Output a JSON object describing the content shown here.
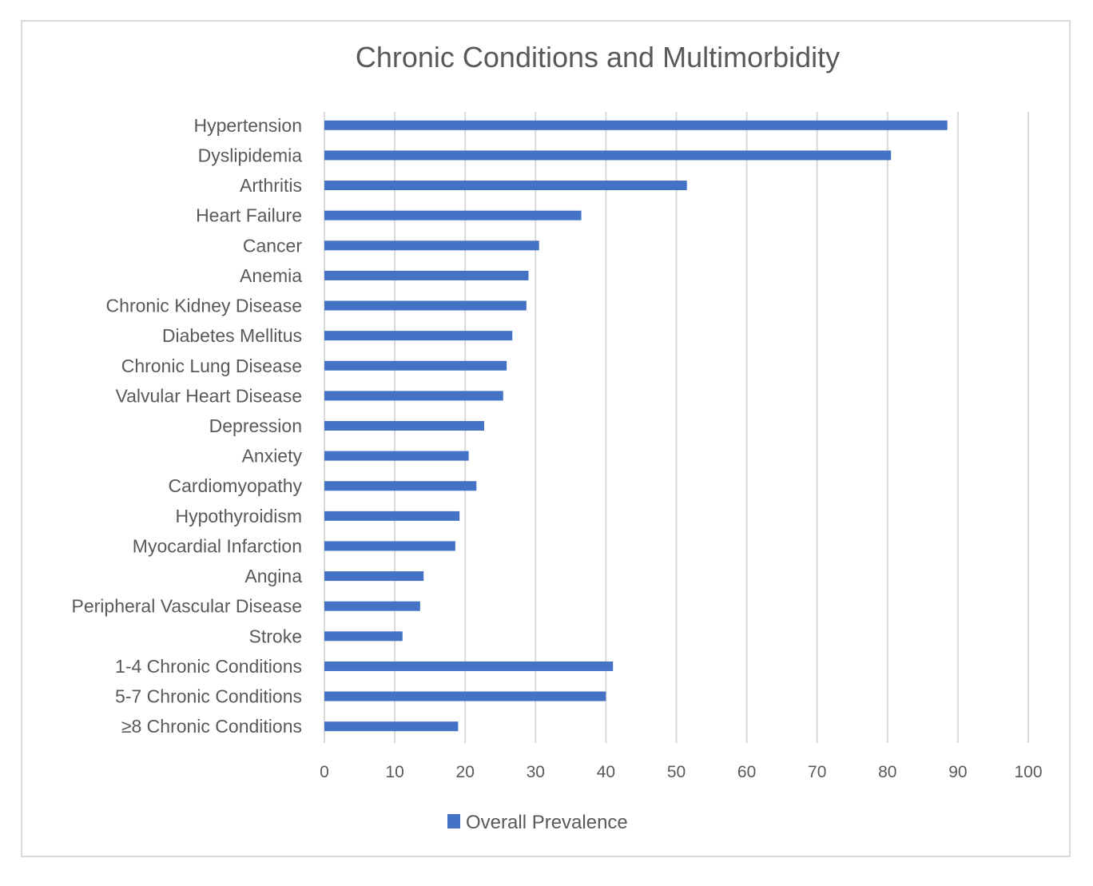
{
  "chart_data": {
    "type": "bar",
    "orientation": "horizontal",
    "title": "Chronic Conditions and Multimorbidity",
    "xlabel": "",
    "ylabel": "",
    "xlim": [
      0,
      100
    ],
    "x_ticks": [
      0,
      10,
      20,
      30,
      40,
      50,
      60,
      70,
      80,
      90,
      100
    ],
    "grid": "vertical",
    "legend_position": "bottom",
    "categories": [
      "Hypertension",
      "Dyslipidemia",
      "Arthritis",
      "Heart Failure",
      "Cancer",
      "Anemia",
      "Chronic Kidney Disease",
      "Diabetes Mellitus",
      "Chronic Lung  Disease",
      "Valvular Heart Disease",
      "Depression",
      "Anxiety",
      "Cardiomyopathy",
      "Hypothyroidism",
      "Myocardial Infarction",
      "Angina",
      "Peripheral Vascular Disease",
      "Stroke",
      "1-4 Chronic Conditions",
      "5-7 Chronic Conditions",
      "≥8 Chronic Conditions"
    ],
    "series": [
      {
        "name": "Overall Prevalence",
        "color": "#4472c4",
        "values": [
          88.5,
          80.5,
          51.5,
          36.5,
          30.5,
          29.0,
          28.7,
          26.7,
          25.9,
          25.4,
          22.7,
          20.5,
          21.6,
          19.2,
          18.6,
          14.1,
          13.6,
          11.1,
          41.0,
          40.0,
          19.0
        ]
      }
    ]
  }
}
